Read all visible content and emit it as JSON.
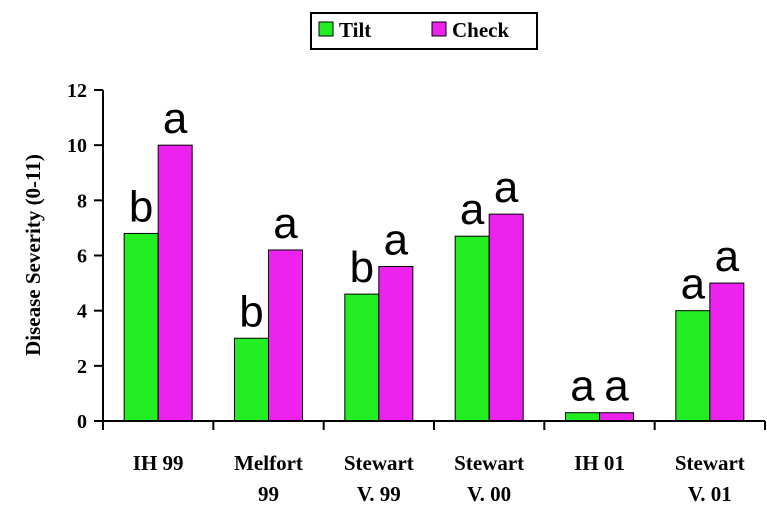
{
  "chart_data": {
    "type": "bar",
    "title": "",
    "xlabel": "",
    "ylabel": "Disease Severity  (0-11)",
    "ylim": [
      0,
      12
    ],
    "yticks": [
      0,
      2,
      4,
      6,
      8,
      10,
      12
    ],
    "grid": false,
    "legend_position": "top-center",
    "categories": [
      [
        "IH 99"
      ],
      [
        "Melfort",
        "99"
      ],
      [
        "Stewart",
        "V. 99"
      ],
      [
        "Stewart",
        "V. 00"
      ],
      [
        "IH 01"
      ],
      [
        "Stewart",
        "V. 01"
      ]
    ],
    "series": [
      {
        "name": "Tilt",
        "color": "#22ee22",
        "values": [
          6.8,
          3.0,
          4.6,
          6.7,
          0.3,
          4.0
        ],
        "letters": [
          "b",
          "b",
          "b",
          "a",
          "a",
          "a"
        ]
      },
      {
        "name": "Check",
        "color": "#ee22ee",
        "values": [
          10.0,
          6.2,
          5.6,
          7.5,
          0.3,
          5.0
        ],
        "letters": [
          "a",
          "a",
          "a",
          "a",
          "a",
          "a"
        ]
      }
    ]
  }
}
